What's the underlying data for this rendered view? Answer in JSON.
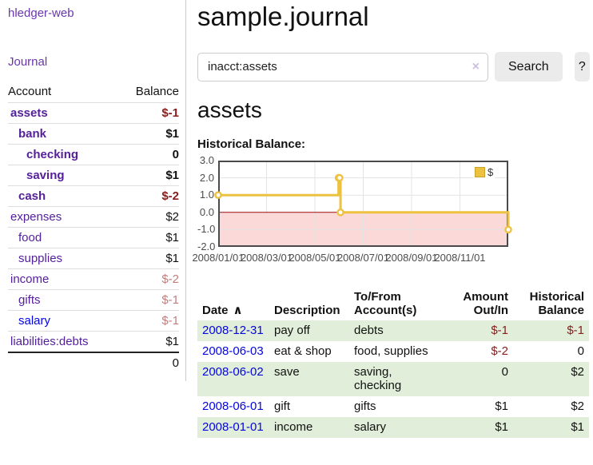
{
  "app": {
    "name": "hledger-web",
    "nav_journal": "Journal"
  },
  "sidebar": {
    "columns": {
      "account": "Account",
      "balance": "Balance"
    },
    "accounts": [
      {
        "name": "assets",
        "depth": 0,
        "bold": true,
        "balance": "$-1"
      },
      {
        "name": "bank",
        "depth": 1,
        "bold": true,
        "balance": "$1"
      },
      {
        "name": "checking",
        "depth": 2,
        "bold": true,
        "balance": "0"
      },
      {
        "name": "saving",
        "depth": 2,
        "bold": true,
        "balance": "$1"
      },
      {
        "name": "cash",
        "depth": 1,
        "bold": true,
        "balance": "$-2"
      },
      {
        "name": "expenses",
        "depth": 0,
        "bold": false,
        "balance": "$2"
      },
      {
        "name": "food",
        "depth": 1,
        "bold": false,
        "balance": "$1"
      },
      {
        "name": "supplies",
        "depth": 1,
        "bold": false,
        "balance": "$1"
      },
      {
        "name": "income",
        "depth": 0,
        "bold": false,
        "balance": "$-2"
      },
      {
        "name": "gifts",
        "depth": 1,
        "bold": false,
        "balance": "$-1"
      },
      {
        "name": "salary",
        "depth": 1,
        "bold": false,
        "balance": "$-1",
        "color": "blue"
      },
      {
        "name": "liabilities:debts",
        "depth": 0,
        "bold": false,
        "balance": "$1"
      }
    ],
    "total": "0"
  },
  "header": {
    "title": "sample.journal"
  },
  "search": {
    "value": "inacct:assets",
    "clear_icon": "×",
    "button": "Search",
    "help_button": "?"
  },
  "main": {
    "account_heading": "assets",
    "chart_label": "Historical Balance:"
  },
  "chart_data": {
    "type": "line",
    "step": true,
    "title": "Historical Balance:",
    "series": [
      {
        "name": "$",
        "color": "#edc240",
        "points": [
          {
            "date": "2008-01-01",
            "x": 0,
            "y": 1
          },
          {
            "date": "2008-06-01",
            "x": 4.98,
            "y": 2
          },
          {
            "date": "2008-06-02",
            "x": 5.02,
            "y": 2
          },
          {
            "date": "2008-06-03",
            "x": 5.06,
            "y": 0
          },
          {
            "date": "2008-12-31",
            "x": 12,
            "y": -1
          }
        ]
      }
    ],
    "xlim": [
      0,
      12
    ],
    "ylim": [
      -2,
      3
    ],
    "y_ticks": [
      {
        "v": 3,
        "label": "3.0"
      },
      {
        "v": 2,
        "label": "2.0"
      },
      {
        "v": 1,
        "label": "1.0"
      },
      {
        "v": 0,
        "label": "0.0"
      },
      {
        "v": -1,
        "label": "-1.0"
      },
      {
        "v": -2,
        "label": "-2.0"
      }
    ],
    "x_ticks": [
      {
        "v": 0,
        "label": "2008/01/01"
      },
      {
        "v": 2,
        "label": "2008/03/01"
      },
      {
        "v": 4,
        "label": "2008/05/01"
      },
      {
        "v": 6,
        "label": "2008/07/01"
      },
      {
        "v": 8,
        "label": "2008/09/01"
      },
      {
        "v": 10,
        "label": "2008/11/01"
      }
    ],
    "grid": true,
    "legend": {
      "position": "top-right",
      "label": "$"
    },
    "negative_region": {
      "from": 0,
      "to": -2,
      "color": "#fbd9d9"
    },
    "zero_line_color": "#9c0a0a",
    "grid_color": "#e3e3e3",
    "border_color": "#4a4a4a"
  },
  "register": {
    "columns": [
      {
        "label": "Date"
      },
      {
        "label": "Description"
      },
      {
        "label": "To/From Account(s)"
      },
      {
        "label": "Amount Out/In"
      },
      {
        "label": "Historical Balance"
      }
    ],
    "sort_icon": "∧",
    "rows": [
      {
        "date": "2008-12-31",
        "description": "pay off",
        "accounts": "debts",
        "amount": "$-1",
        "balance": "$-1"
      },
      {
        "date": "2008-06-03",
        "description": "eat & shop",
        "accounts": "food, supplies",
        "amount": "$-2",
        "balance": "0"
      },
      {
        "date": "2008-06-02",
        "description": "save",
        "accounts": "saving, checking",
        "amount": "0",
        "balance": "$2"
      },
      {
        "date": "2008-06-01",
        "description": "gift",
        "accounts": "gifts",
        "amount": "$1",
        "balance": "$2"
      },
      {
        "date": "2008-01-01",
        "description": "income",
        "accounts": "salary",
        "amount": "$1",
        "balance": "$1"
      }
    ]
  },
  "colors": {
    "link_purple": "#54219b",
    "link_blue": "#0505dd",
    "negative_dark_red": "#86201f",
    "negative_pale_red": "#c27d7d",
    "row_green": "#e1efda",
    "chart_gold": "#edc240",
    "chart_negative_pink": "#fbd9d9"
  }
}
